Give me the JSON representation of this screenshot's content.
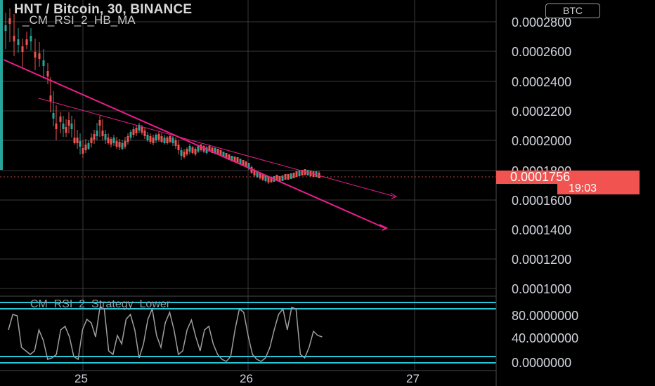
{
  "header": {
    "symbol_title": "HNT / Bitcoin, 30, BINANCE",
    "indicator_label": "_CM_RSI_2_HB_MA",
    "currency_button": "BTC"
  },
  "price_axis": {
    "labels": [
      "0.0002800",
      "0.0002600",
      "0.0002400",
      "0.0002200",
      "0.0002000",
      "0.0001800",
      "0.0001600",
      "0.0001400",
      "0.0001200",
      "0.0001000"
    ]
  },
  "last_price": {
    "value": "0.0001756",
    "countdown": "19:03"
  },
  "time_axis": {
    "labels": [
      "25",
      "26",
      "27"
    ]
  },
  "rsi_panel": {
    "title": "_CM_RSI_2_Strategy_Lower",
    "axis_labels": [
      "80.0000000",
      "40.0000000",
      "0.0000000"
    ]
  },
  "colors": {
    "background": "#000000",
    "grid": "#3a3a3a",
    "up_candle": "#26a69a",
    "down_candle": "#ef5350",
    "trendline": "#e91e8c",
    "rsi_line": "#9e9e9e",
    "rsi_bands": "#26c6da",
    "price_tag": "#f05350"
  }
}
